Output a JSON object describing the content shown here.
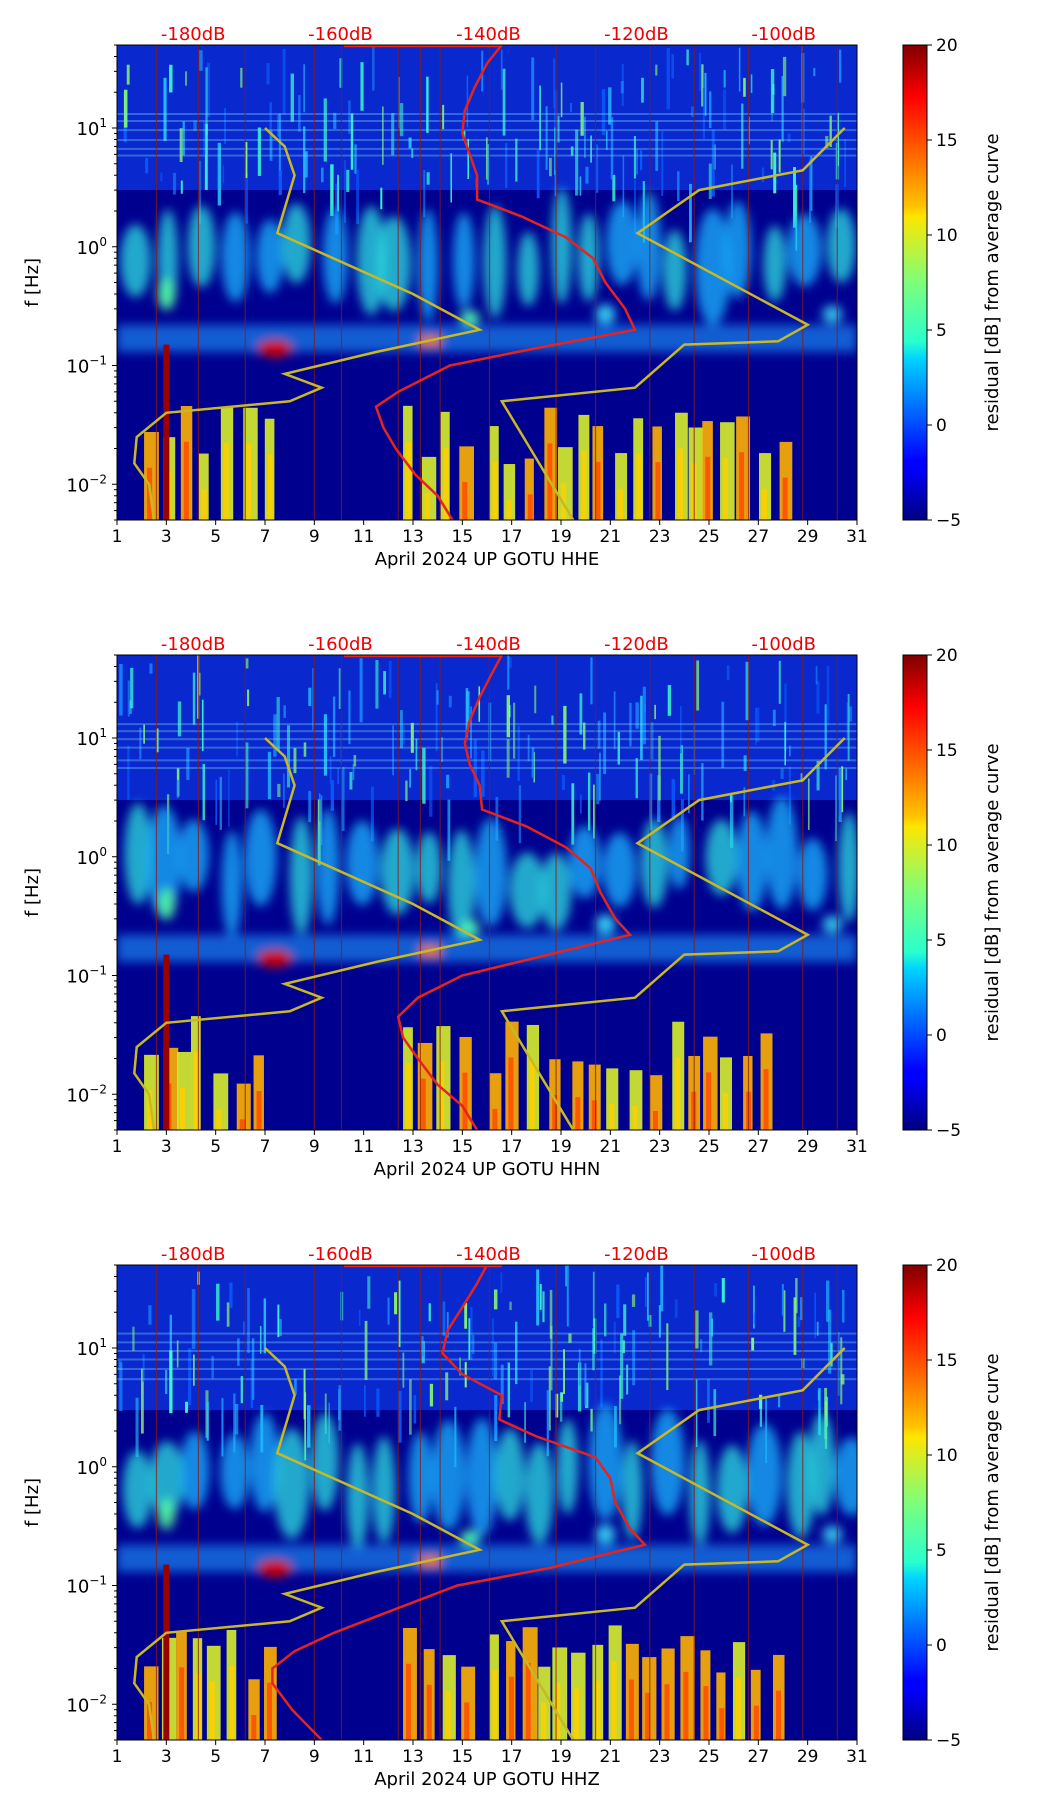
{
  "figure": {
    "colorbar_label": "residual [dB] from average curve",
    "ylabel": "f [Hz]",
    "db_labels": [
      "-180dB",
      "-160dB",
      "-140dB",
      "-120dB",
      "-100dB"
    ],
    "db_color": "#ee0000"
  },
  "chart_data": [
    {
      "type": "heatmap",
      "title": "",
      "xlabel": "April 2024 UP GOTU  HHE",
      "ylabel": "f [Hz]",
      "xlim": [
        1,
        31
      ],
      "ylim": [
        0.005,
        50
      ],
      "yscale": "log",
      "xticks": [
        1,
        3,
        5,
        7,
        9,
        11,
        13,
        15,
        17,
        19,
        21,
        23,
        25,
        27,
        29,
        31
      ],
      "yticks": [
        {
          "value": 0.01,
          "base": "10",
          "exp": "−2"
        },
        {
          "value": 0.1,
          "base": "10",
          "exp": "−1"
        },
        {
          "value": 1,
          "base": "10",
          "exp": "0"
        },
        {
          "value": 10,
          "base": "10",
          "exp": "1"
        }
      ],
      "colorbar": {
        "label": "residual [dB] from average curve",
        "range": [
          -5,
          20
        ],
        "ticks": [
          -5,
          0,
          5,
          10,
          15,
          20
        ],
        "tick_labels": [
          "−5",
          "0",
          "5",
          "10",
          "15",
          "20"
        ],
        "colormap": "jet"
      },
      "average_curve": {
        "color": "#e6231f",
        "points": [
          [
            14.6,
            0.005
          ],
          [
            14.0,
            0.008
          ],
          [
            13.1,
            0.012
          ],
          [
            12.3,
            0.02
          ],
          [
            11.8,
            0.03
          ],
          [
            11.5,
            0.045
          ],
          [
            12.4,
            0.06
          ],
          [
            14.5,
            0.1
          ],
          [
            18,
            0.14
          ],
          [
            22,
            0.2
          ],
          [
            21.6,
            0.3
          ],
          [
            20.8,
            0.5
          ],
          [
            20.3,
            0.8
          ],
          [
            19.2,
            1.2
          ],
          [
            17.4,
            1.8
          ],
          [
            15.6,
            2.5
          ],
          [
            15.6,
            4
          ],
          [
            15.3,
            6
          ],
          [
            15,
            9
          ],
          [
            15.1,
            14
          ],
          [
            15.5,
            22
          ],
          [
            16,
            35
          ],
          [
            16.6,
            50
          ]
        ]
      },
      "model_curve": {
        "color": "#c9b825",
        "points": [
          [
            2.5,
            0.005
          ],
          [
            2.3,
            0.01
          ],
          [
            1.7,
            0.015
          ],
          [
            1.8,
            0.025
          ],
          [
            3,
            0.04
          ],
          [
            8,
            0.05
          ],
          [
            9.3,
            0.065
          ],
          [
            7.8,
            0.085
          ],
          [
            11.5,
            0.13
          ],
          [
            15.7,
            0.2
          ],
          [
            13,
            0.4
          ],
          [
            7.5,
            1.3
          ],
          [
            8.2,
            4
          ],
          [
            7.8,
            7
          ],
          [
            7,
            10
          ]
        ],
        "points_b": [
          [
            19.5,
            0.005
          ],
          [
            16.6,
            0.05
          ],
          [
            22,
            0.065
          ],
          [
            24,
            0.15
          ],
          [
            27.8,
            0.16
          ],
          [
            29,
            0.22
          ],
          [
            22.1,
            1.3
          ],
          [
            24.6,
            3
          ],
          [
            28.8,
            4.4
          ],
          [
            30.5,
            10
          ]
        ]
      },
      "db_axis_values": [
        -180,
        -160,
        -140,
        -120,
        -100
      ]
    },
    {
      "type": "heatmap",
      "title": "",
      "xlabel": "April 2024 UP GOTU  HHN",
      "ylabel": "f [Hz]",
      "xlim": [
        1,
        31
      ],
      "ylim": [
        0.005,
        50
      ],
      "yscale": "log",
      "xticks": [
        1,
        3,
        5,
        7,
        9,
        11,
        13,
        15,
        17,
        19,
        21,
        23,
        25,
        27,
        29,
        31
      ],
      "yticks": [
        {
          "value": 0.01,
          "base": "10",
          "exp": "−2"
        },
        {
          "value": 0.1,
          "base": "10",
          "exp": "−1"
        },
        {
          "value": 1,
          "base": "10",
          "exp": "0"
        },
        {
          "value": 10,
          "base": "10",
          "exp": "1"
        }
      ],
      "colorbar": {
        "label": "residual [dB] from average curve",
        "range": [
          -5,
          20
        ],
        "ticks": [
          -5,
          0,
          5,
          10,
          15,
          20
        ],
        "tick_labels": [
          "−5",
          "0",
          "5",
          "10",
          "15",
          "20"
        ],
        "colormap": "jet"
      },
      "average_curve": {
        "color": "#e6231f",
        "points": [
          [
            15.6,
            0.005
          ],
          [
            15.0,
            0.008
          ],
          [
            14.0,
            0.012
          ],
          [
            13.2,
            0.02
          ],
          [
            12.6,
            0.03
          ],
          [
            12.4,
            0.045
          ],
          [
            13.2,
            0.065
          ],
          [
            15.0,
            0.1
          ],
          [
            18.5,
            0.15
          ],
          [
            21.8,
            0.22
          ],
          [
            21.2,
            0.3
          ],
          [
            20.6,
            0.5
          ],
          [
            20.2,
            0.8
          ],
          [
            19.2,
            1.2
          ],
          [
            17.6,
            1.8
          ],
          [
            15.8,
            2.5
          ],
          [
            15.7,
            4
          ],
          [
            15.3,
            6
          ],
          [
            15.1,
            9
          ],
          [
            15.3,
            14
          ],
          [
            15.7,
            22
          ],
          [
            16.2,
            35
          ],
          [
            16.6,
            50
          ]
        ]
      },
      "model_curve": {
        "color": "#c9b825",
        "points": [
          [
            2.5,
            0.005
          ],
          [
            2.3,
            0.01
          ],
          [
            1.7,
            0.015
          ],
          [
            1.8,
            0.025
          ],
          [
            3,
            0.04
          ],
          [
            8,
            0.05
          ],
          [
            9.3,
            0.065
          ],
          [
            7.8,
            0.085
          ],
          [
            11.5,
            0.13
          ],
          [
            15.7,
            0.2
          ],
          [
            13,
            0.4
          ],
          [
            7.5,
            1.3
          ],
          [
            8.2,
            4
          ],
          [
            7.8,
            7
          ],
          [
            7,
            10
          ]
        ],
        "points_b": [
          [
            19.5,
            0.005
          ],
          [
            16.6,
            0.05
          ],
          [
            22,
            0.065
          ],
          [
            24,
            0.15
          ],
          [
            27.8,
            0.16
          ],
          [
            29,
            0.22
          ],
          [
            22.1,
            1.3
          ],
          [
            24.6,
            3
          ],
          [
            28.8,
            4.4
          ],
          [
            30.5,
            10
          ]
        ]
      },
      "db_axis_values": [
        -180,
        -160,
        -140,
        -120,
        -100
      ]
    },
    {
      "type": "heatmap",
      "title": "",
      "xlabel": "April 2024 UP GOTU  HHZ",
      "ylabel": "f [Hz]",
      "xlim": [
        1,
        31
      ],
      "ylim": [
        0.005,
        50
      ],
      "yscale": "log",
      "xticks": [
        1,
        3,
        5,
        7,
        9,
        11,
        13,
        15,
        17,
        19,
        21,
        23,
        25,
        27,
        29,
        31
      ],
      "yticks": [
        {
          "value": 0.01,
          "base": "10",
          "exp": "−2"
        },
        {
          "value": 0.1,
          "base": "10",
          "exp": "−1"
        },
        {
          "value": 1,
          "base": "10",
          "exp": "0"
        },
        {
          "value": 10,
          "base": "10",
          "exp": "1"
        }
      ],
      "colorbar": {
        "label": "residual [dB] from average curve",
        "range": [
          -5,
          20
        ],
        "ticks": [
          -5,
          0,
          5,
          10,
          15,
          20
        ],
        "tick_labels": [
          "−5",
          "0",
          "5",
          "10",
          "15",
          "20"
        ],
        "colormap": "jet"
      },
      "average_curve": {
        "color": "#e6231f",
        "points": [
          [
            9.3,
            0.005
          ],
          [
            8.1,
            0.009
          ],
          [
            7.3,
            0.015
          ],
          [
            7.3,
            0.02
          ],
          [
            8.2,
            0.028
          ],
          [
            9.8,
            0.04
          ],
          [
            12,
            0.06
          ],
          [
            14.8,
            0.1
          ],
          [
            18.5,
            0.14
          ],
          [
            22.4,
            0.22
          ],
          [
            21.8,
            0.3
          ],
          [
            21.2,
            0.5
          ],
          [
            21,
            0.8
          ],
          [
            20.4,
            1.2
          ],
          [
            18,
            1.8
          ],
          [
            16.5,
            2.5
          ],
          [
            16.6,
            4
          ],
          [
            15,
            6
          ],
          [
            14.2,
            9
          ],
          [
            14.4,
            14
          ],
          [
            15,
            22
          ],
          [
            15.6,
            35
          ],
          [
            16,
            50
          ]
        ]
      },
      "model_curve": {
        "color": "#c9b825",
        "points": [
          [
            2.5,
            0.005
          ],
          [
            2.3,
            0.01
          ],
          [
            1.7,
            0.015
          ],
          [
            1.8,
            0.025
          ],
          [
            3,
            0.04
          ],
          [
            8,
            0.05
          ],
          [
            9.3,
            0.065
          ],
          [
            7.8,
            0.085
          ],
          [
            11.5,
            0.13
          ],
          [
            15.7,
            0.2
          ],
          [
            13,
            0.4
          ],
          [
            7.5,
            1.3
          ],
          [
            8.2,
            4
          ],
          [
            7.8,
            7
          ],
          [
            7,
            10
          ]
        ],
        "points_b": [
          [
            19.5,
            0.005
          ],
          [
            16.6,
            0.05
          ],
          [
            22,
            0.065
          ],
          [
            24,
            0.15
          ],
          [
            27.8,
            0.16
          ],
          [
            29,
            0.22
          ],
          [
            22.1,
            1.3
          ],
          [
            24.6,
            3
          ],
          [
            28.8,
            4.4
          ],
          [
            30.5,
            10
          ]
        ]
      },
      "db_axis_values": [
        -180,
        -160,
        -140,
        -120,
        -100
      ]
    }
  ]
}
